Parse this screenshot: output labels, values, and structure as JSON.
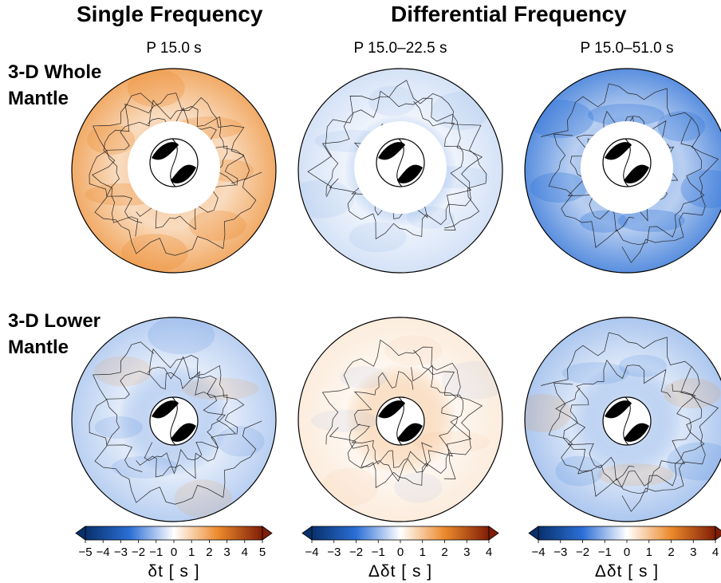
{
  "headers": {
    "single": "Single Frequency",
    "differential": "Differential Frequency"
  },
  "panel_titles": [
    "P 15.0 s",
    "P 15.0–22.5 s",
    "P 15.0–51.0 s"
  ],
  "row_labels": [
    {
      "line1": "3-D Whole",
      "line2": "Mantle"
    },
    {
      "line1": "3-D Lower",
      "line2": "Mantle"
    }
  ],
  "colors": {
    "negative_max": "#08306b",
    "negative": "#2b6fd6",
    "neutral": "#ffffff",
    "positive": "#ec8a2c",
    "positive_max": "#7f1d06"
  },
  "chart_data": {
    "type": "heatmap",
    "description_panels": [
      {
        "row": "3-D Whole Mantle",
        "column": "P 15.0 s",
        "quantity": "δt",
        "dominant_sign": "positive",
        "intensity": 0.55
      },
      {
        "row": "3-D Whole Mantle",
        "column": "P 15.0–22.5 s",
        "quantity": "Δδt",
        "dominant_sign": "negative",
        "intensity": 0.15
      },
      {
        "row": "3-D Whole Mantle",
        "column": "P 15.0–51.0 s",
        "quantity": "Δδt",
        "dominant_sign": "negative",
        "intensity": 0.6
      },
      {
        "row": "3-D Lower Mantle",
        "column": "P 15.0 s",
        "quantity": "δt",
        "dominant_sign": "mixed",
        "intensity": 0.25
      },
      {
        "row": "3-D Lower Mantle",
        "column": "P 15.0–22.5 s",
        "quantity": "Δδt",
        "dominant_sign": "mixed",
        "intensity": 0.12
      },
      {
        "row": "3-D Lower Mantle",
        "column": "P 15.0–51.0 s",
        "quantity": "Δδt",
        "dominant_sign": "mixed",
        "intensity": 0.3
      }
    ],
    "colorbars": [
      {
        "label": "δt [ s ]",
        "range": [
          -5,
          5
        ],
        "ticks": [
          "−5",
          "−4",
          "−3",
          "−2",
          "−1",
          "0",
          "1",
          "2",
          "3",
          "4",
          "5"
        ]
      },
      {
        "label": "Δδt [ s ]",
        "range": [
          -4,
          4
        ],
        "ticks": [
          "−4",
          "−3",
          "−2",
          "−1",
          "0",
          "1",
          "2",
          "3",
          "4"
        ]
      },
      {
        "label": "Δδt [ s ]",
        "range": [
          -4,
          4
        ],
        "ticks": [
          "−4",
          "−3",
          "−2",
          "−1",
          "0",
          "1",
          "2",
          "3",
          "4"
        ]
      }
    ]
  }
}
